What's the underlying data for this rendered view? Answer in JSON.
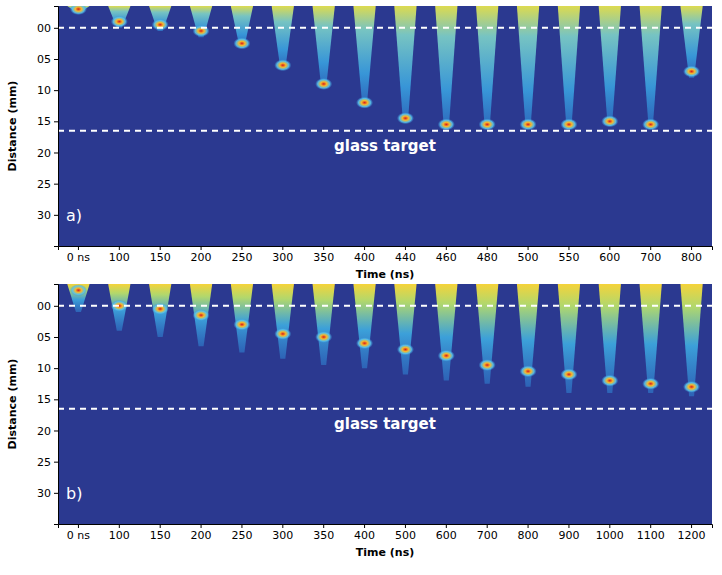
{
  "chart_data": [
    {
      "type": "image_sequence",
      "label": "a)",
      "x_label": "Time (ns)",
      "y_label": "Distance (mm)",
      "categories": [
        "0 ns",
        "100",
        "150",
        "200",
        "250",
        "300",
        "350",
        "400",
        "440",
        "460",
        "480",
        "500",
        "550",
        "600",
        "700",
        "800"
      ],
      "values": [
        -2.5,
        0,
        0.5,
        1.5,
        3,
        6.5,
        9.5,
        12,
        15,
        16,
        16,
        16,
        16,
        15,
        15,
        8
      ],
      "peak": [
        -3,
        -1,
        -0.5,
        0.5,
        2.5,
        6,
        9,
        12,
        14.5,
        15.5,
        15.5,
        15.5,
        15.5,
        15,
        15.5,
        7
      ],
      "ylim": [
        -3.5,
        35
      ],
      "yticks": [
        {
          "value": 0,
          "label": "00"
        },
        {
          "value": 5,
          "label": "05"
        },
        10,
        15,
        20,
        25,
        30
      ],
      "hlines": [
        0,
        16.5
      ],
      "annotation": "glass target"
    },
    {
      "type": "image_sequence",
      "label": "b)",
      "x_label": "Time (ns)",
      "y_label": "Distance (mm)",
      "categories": [
        "0 ns",
        "100",
        "150",
        "200",
        "250",
        "300",
        "350",
        "400",
        "500",
        "600",
        "700",
        "800",
        "900",
        "1000",
        "1100",
        "1200"
      ],
      "values": [
        1,
        4,
        5,
        6.5,
        7.5,
        8.5,
        9.5,
        10,
        11,
        12,
        12.5,
        13,
        14,
        14,
        14,
        14.5
      ],
      "peak": [
        -2.5,
        0,
        0.5,
        1.5,
        3,
        4.5,
        5,
        6,
        7,
        8,
        9.5,
        10.5,
        11,
        12,
        12.5,
        13
      ],
      "ylim": [
        -3.5,
        35
      ],
      "yticks": [
        {
          "value": 0,
          "label": "00"
        },
        {
          "value": 5,
          "label": "05"
        },
        10,
        15,
        20,
        25,
        30
      ],
      "hlines": [
        0,
        16.5
      ],
      "annotation": "glass target"
    }
  ]
}
